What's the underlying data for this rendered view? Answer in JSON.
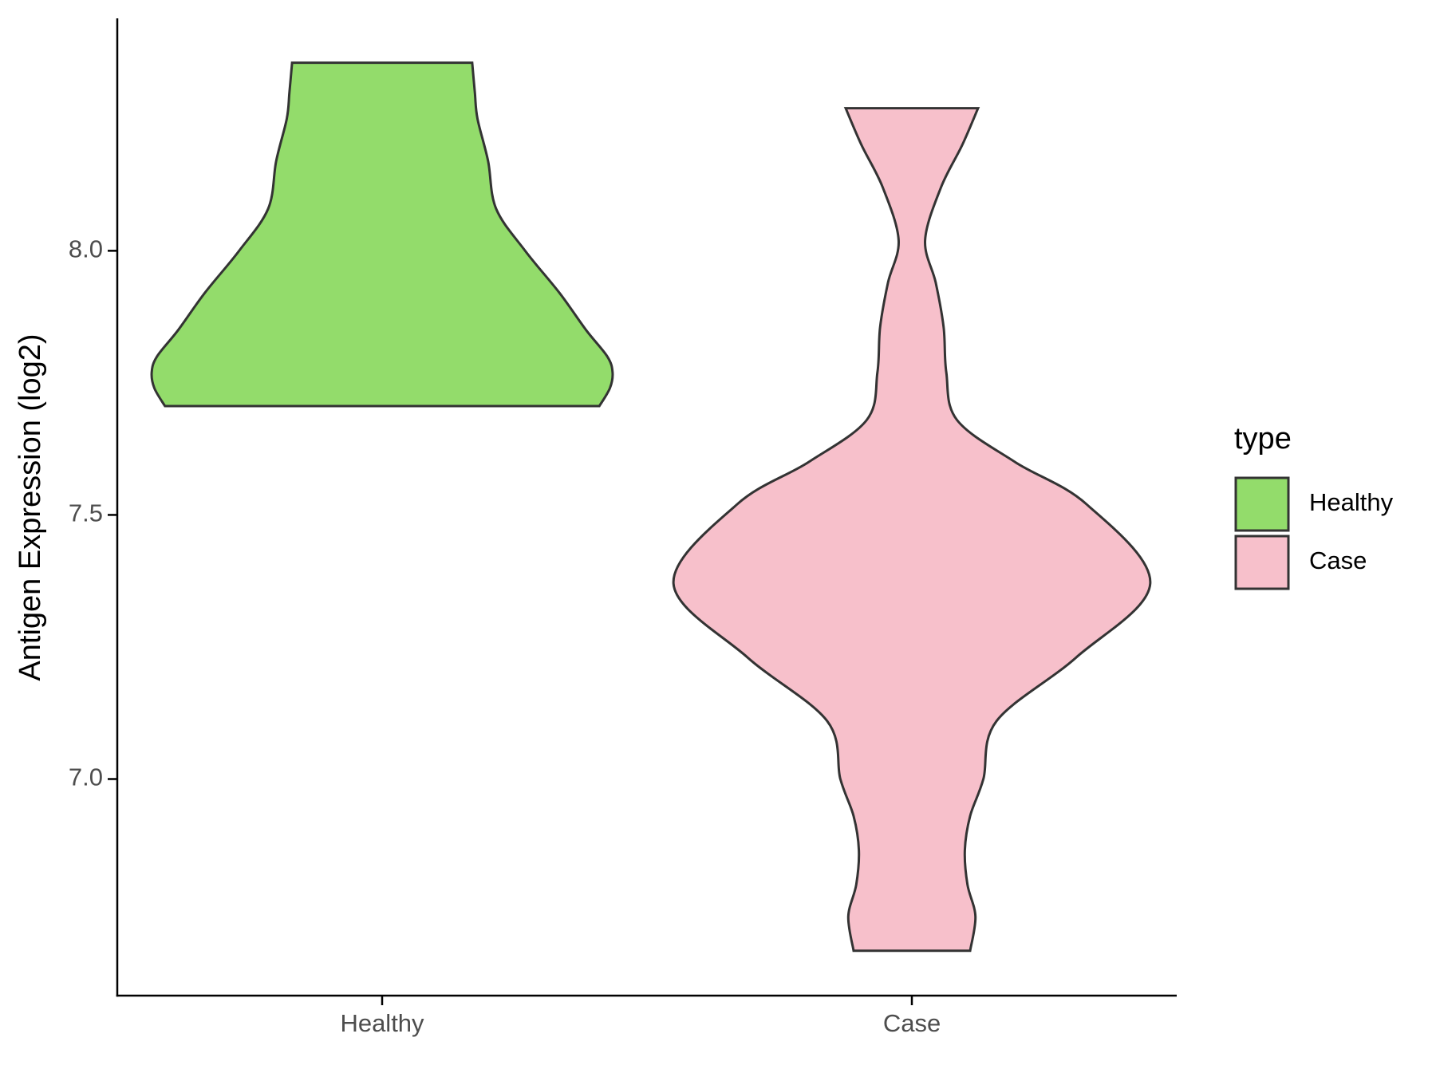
{
  "chart_data": {
    "type": "violin",
    "y_label": "Antigen Expression (log2)",
    "categories": [
      "Healthy",
      "Case"
    ],
    "ylim": [
      6.59,
      8.44
    ],
    "yticks": [
      {
        "value": 7.0,
        "label": "7.0"
      },
      {
        "value": 7.5,
        "label": "7.5"
      },
      {
        "value": 8.0,
        "label": "8.0"
      }
    ],
    "legend_title": "type",
    "legend": "right",
    "series": [
      {
        "name": "Healthy",
        "color": "#93dc6b",
        "y": [
          7.706,
          7.74,
          7.77,
          7.8,
          7.85,
          7.92,
          8.0,
          8.08,
          8.17,
          8.25,
          8.3,
          8.356
        ],
        "width": [
          0.82,
          0.86,
          0.87,
          0.85,
          0.77,
          0.67,
          0.54,
          0.43,
          0.4,
          0.36,
          0.35,
          0.34
        ]
      },
      {
        "name": "Case",
        "color": "#f7c0cb",
        "y": [
          6.675,
          6.74,
          6.8,
          6.865,
          6.93,
          7.0,
          7.11,
          7.23,
          7.37,
          7.52,
          7.6,
          7.68,
          7.77,
          7.855,
          7.94,
          8.02,
          8.12,
          8.2,
          8.27
        ],
        "width": [
          0.22,
          0.24,
          0.21,
          0.2,
          0.22,
          0.27,
          0.32,
          0.62,
          0.9,
          0.66,
          0.39,
          0.17,
          0.13,
          0.12,
          0.09,
          0.05,
          0.11,
          0.19,
          0.25
        ]
      }
    ]
  }
}
